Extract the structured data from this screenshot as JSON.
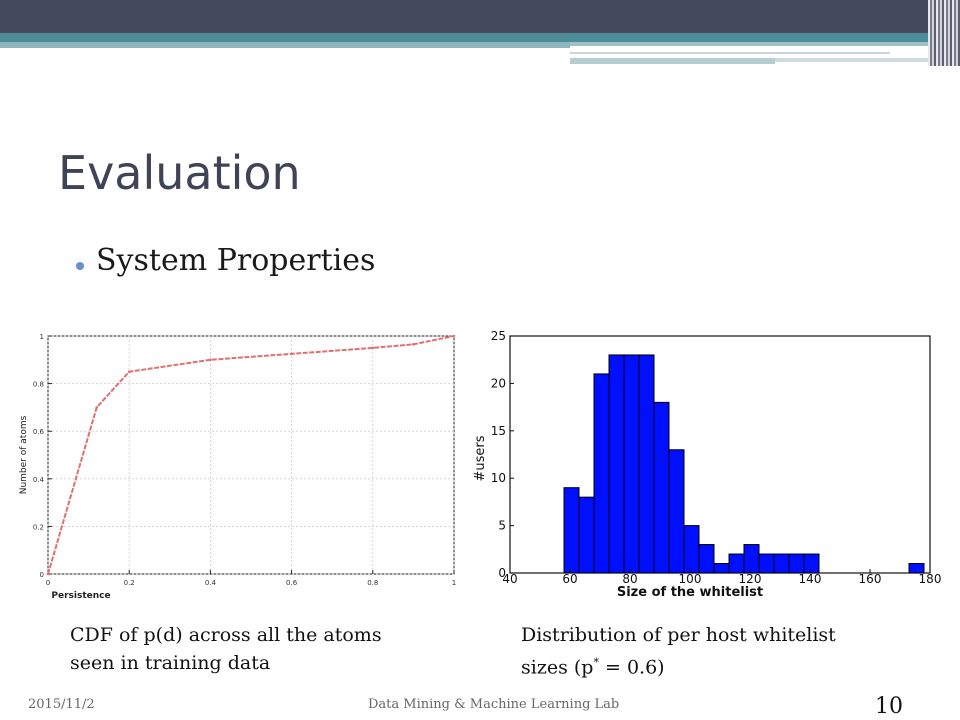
{
  "slide": {
    "title": "Evaluation",
    "bullet": "System Properties",
    "date": "2015/11/2",
    "footer": "Data Mining & Machine Learning Lab",
    "page_number": "10",
    "colors": {
      "title": "#3f4356",
      "bar_fill": "#0010ff",
      "line_color": "#e07070",
      "header_dark": "#464a5e",
      "header_teal": "#4c8d98"
    }
  },
  "captions": {
    "left": [
      "CDF of p(d) across all the atoms",
      "seen in training data"
    ],
    "right_line1": "Distribution of per host whitelist",
    "right_line2_prefix": "sizes (p",
    "right_line2_sup": "*",
    "right_line2_suffix": " = 0.6)"
  },
  "chart_data": [
    {
      "type": "line",
      "title": "",
      "xlabel": "Persistence",
      "ylabel": "Number of atoms",
      "xlim": [
        0,
        1
      ],
      "ylim": [
        0,
        1
      ],
      "grid": true,
      "xticks": [
        0,
        0.2,
        0.4,
        0.6,
        0.8,
        1
      ],
      "xtick_labels": [
        "0",
        "0.2",
        "0.4",
        "0.6",
        "0.8",
        "1"
      ],
      "yticks": [
        0,
        0.2,
        0.4,
        0.6,
        0.8,
        1
      ],
      "ytick_labels": [
        "0",
        "0.2",
        "0.4",
        "0.6",
        "0.8",
        "1"
      ],
      "series": [
        {
          "x": [
            0,
            0.12,
            0.2,
            0.4,
            0.6,
            0.8,
            0.9,
            1
          ],
          "y": [
            0,
            0.7,
            0.85,
            0.9,
            0.925,
            0.95,
            0.965,
            1
          ]
        }
      ]
    },
    {
      "type": "bar",
      "title": "",
      "xlabel": "Size of the whitelist",
      "ylabel": "#users",
      "xlim": [
        40,
        180
      ],
      "ylim": [
        0,
        25
      ],
      "grid": false,
      "bin_width": 5,
      "xticks": [
        40,
        60,
        80,
        100,
        120,
        140,
        160,
        180
      ],
      "xtick_labels": [
        "40",
        "60",
        "80",
        "100",
        "120",
        "140",
        "160",
        "180"
      ],
      "yticks": [
        0,
        5,
        10,
        15,
        20,
        25
      ],
      "ytick_labels": [
        "0",
        "5",
        "10",
        "15",
        "20",
        "25"
      ],
      "bin_starts": [
        58,
        63,
        68,
        73,
        78,
        83,
        88,
        93,
        98,
        103,
        108,
        113,
        118,
        123,
        128,
        133,
        138,
        173
      ],
      "values": [
        9,
        8,
        21,
        23,
        23,
        23,
        18,
        13,
        5,
        3,
        1,
        2,
        3,
        2,
        2,
        2,
        2,
        1
      ]
    }
  ]
}
